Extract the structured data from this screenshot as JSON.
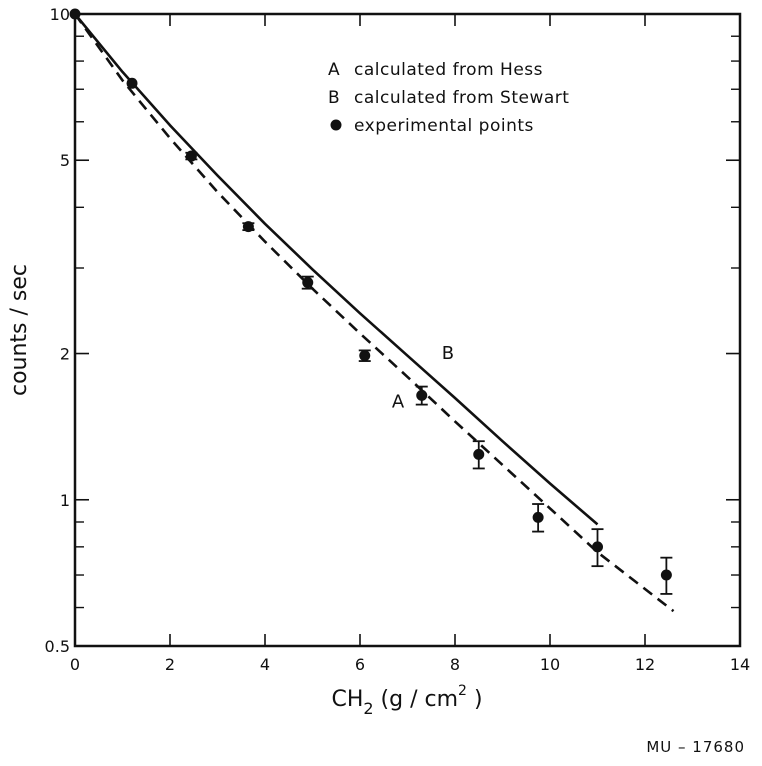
{
  "chart_data": {
    "type": "line",
    "title": "",
    "xlabel": {
      "base": "CH",
      "sub": "2",
      "rest": " (g / cm",
      "sup": "2",
      "close": " )"
    },
    "ylabel": "counts / sec",
    "xlim": [
      0,
      14
    ],
    "ylim": [
      0.5,
      10
    ],
    "yscale": "log",
    "grid": false,
    "legend_position": "top-right",
    "x_ticks": [
      {
        "value": 0,
        "label": "0"
      },
      {
        "value": 2,
        "label": "2"
      },
      {
        "value": 4,
        "label": "4"
      },
      {
        "value": 6,
        "label": "6"
      },
      {
        "value": 8,
        "label": "8"
      },
      {
        "value": 10,
        "label": "10"
      },
      {
        "value": 12,
        "label": "12"
      },
      {
        "value": 14,
        "label": "14"
      }
    ],
    "y_ticks": [
      {
        "value": 0.5,
        "label": "0.5"
      },
      {
        "value": 1,
        "label": "1"
      },
      {
        "value": 2,
        "label": "2"
      },
      {
        "value": 5,
        "label": "5"
      },
      {
        "value": 10,
        "label": "10"
      }
    ],
    "y_minor_ticks": [
      0.6,
      0.7,
      0.8,
      0.9,
      3,
      4,
      6,
      7,
      8,
      9
    ],
    "legend": [
      {
        "symbol": "A",
        "text": "calculated from Hess"
      },
      {
        "symbol": "B",
        "text": "calculated from Stewart"
      },
      {
        "symbol": "●",
        "text": "experimental points"
      }
    ],
    "series": [
      {
        "name": "A",
        "style": "dashed",
        "x": [
          0,
          1,
          2,
          3,
          4,
          5,
          6,
          7,
          8,
          9,
          10,
          11,
          12.6
        ],
        "y": [
          10.0,
          7.3,
          5.55,
          4.3,
          3.4,
          2.72,
          2.2,
          1.79,
          1.45,
          1.18,
          0.96,
          0.78,
          0.59
        ]
      },
      {
        "name": "B",
        "style": "solid",
        "x": [
          0,
          1,
          2,
          3,
          4,
          5,
          6,
          7,
          8,
          9,
          10,
          11
        ],
        "y": [
          10.0,
          7.6,
          5.9,
          4.65,
          3.7,
          2.98,
          2.42,
          1.98,
          1.62,
          1.32,
          1.08,
          0.89
        ]
      },
      {
        "name": "experimental points",
        "style": "points",
        "x": [
          0,
          1.2,
          2.45,
          3.65,
          4.9,
          6.1,
          7.3,
          8.5,
          9.75,
          11.0,
          12.45
        ],
        "y": [
          10.0,
          7.2,
          5.1,
          3.65,
          2.8,
          1.98,
          1.64,
          1.24,
          0.92,
          0.8,
          0.7
        ],
        "error": [
          0,
          0,
          0.08,
          0.06,
          0.08,
          0.05,
          0.07,
          0.08,
          0.06,
          0.07,
          0.06
        ]
      }
    ],
    "annotations": [
      {
        "text": "A",
        "x": 6.8,
        "y": 1.55
      },
      {
        "text": "B",
        "x": 7.85,
        "y": 1.95
      }
    ]
  },
  "figure_id": "MU – 17680"
}
